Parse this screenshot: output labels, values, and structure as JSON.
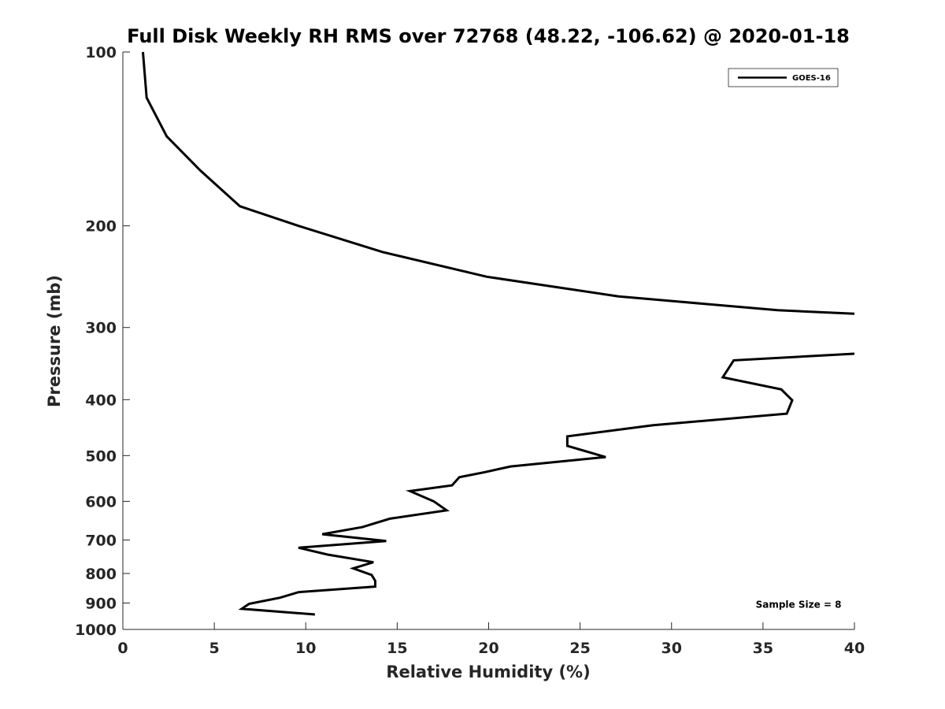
{
  "chart_data": {
    "type": "line",
    "title": "Full Disk Weekly RH RMS over 72768 (48.22, -106.62) @ 2020-01-18",
    "xlabel": "Relative Humidity (%)",
    "ylabel": "Pressure (mb)",
    "xlim": [
      0,
      40
    ],
    "ylim": [
      100,
      1000
    ],
    "yscale": "log",
    "y_reversed": true,
    "x_ticks": [
      "0",
      "5",
      "10",
      "15",
      "20",
      "25",
      "30",
      "35",
      "40"
    ],
    "y_ticks": [
      "100",
      "200",
      "300",
      "400",
      "500",
      "600",
      "700",
      "800",
      "900",
      "1000"
    ],
    "grid": false,
    "legend_position": "top-right",
    "series": [
      {
        "name": "GOES-16",
        "color": "#000000",
        "segments": [
          [
            {
              "x": 1.1,
              "p": 100
            },
            {
              "x": 1.3,
              "p": 120
            },
            {
              "x": 2.4,
              "p": 140
            },
            {
              "x": 4.2,
              "p": 160
            },
            {
              "x": 6.4,
              "p": 185
            },
            {
              "x": 9.6,
              "p": 200
            },
            {
              "x": 14.2,
              "p": 222
            },
            {
              "x": 19.9,
              "p": 245
            },
            {
              "x": 27.1,
              "p": 265
            },
            {
              "x": 35.8,
              "p": 280
            },
            {
              "x": 40.0,
              "p": 284
            }
          ],
          [
            {
              "x": 40.0,
              "p": 333
            },
            {
              "x": 33.4,
              "p": 342
            },
            {
              "x": 32.8,
              "p": 366
            },
            {
              "x": 36.0,
              "p": 384
            },
            {
              "x": 36.6,
              "p": 401
            },
            {
              "x": 36.3,
              "p": 423
            },
            {
              "x": 29.0,
              "p": 443
            },
            {
              "x": 24.3,
              "p": 463
            },
            {
              "x": 24.3,
              "p": 481
            },
            {
              "x": 26.4,
              "p": 503
            },
            {
              "x": 21.2,
              "p": 522
            },
            {
              "x": 19.8,
              "p": 534
            },
            {
              "x": 18.4,
              "p": 545
            },
            {
              "x": 18.0,
              "p": 563
            },
            {
              "x": 15.7,
              "p": 576
            },
            {
              "x": 17.0,
              "p": 600
            },
            {
              "x": 17.7,
              "p": 622
            },
            {
              "x": 14.6,
              "p": 643
            },
            {
              "x": 13.1,
              "p": 665
            },
            {
              "x": 10.9,
              "p": 684
            },
            {
              "x": 14.4,
              "p": 703
            },
            {
              "x": 9.6,
              "p": 722
            },
            {
              "x": 11.2,
              "p": 742
            },
            {
              "x": 13.7,
              "p": 765
            },
            {
              "x": 12.6,
              "p": 784
            },
            {
              "x": 13.6,
              "p": 805
            },
            {
              "x": 13.8,
              "p": 824
            },
            {
              "x": 13.8,
              "p": 843
            },
            {
              "x": 9.6,
              "p": 862
            },
            {
              "x": 8.6,
              "p": 881
            },
            {
              "x": 6.9,
              "p": 903
            },
            {
              "x": 6.5,
              "p": 921
            },
            {
              "x": 10.5,
              "p": 942
            }
          ]
        ]
      }
    ],
    "annotations": [
      {
        "text": "Sample Size = 8",
        "x": 34.6,
        "p": 903
      }
    ]
  }
}
